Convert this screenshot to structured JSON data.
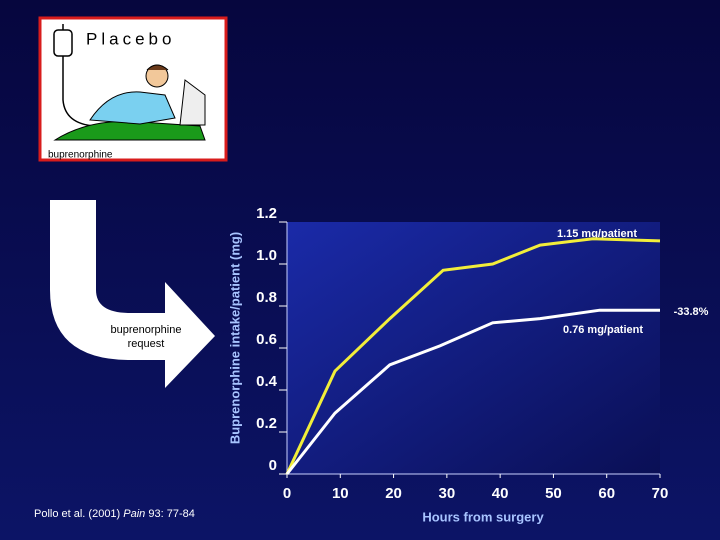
{
  "chart_data": {
    "type": "line",
    "y_label": "Buprenorphine intake/patient (mg)",
    "x_label": "Hours from surgery",
    "xlim": [
      0,
      70
    ],
    "xticks": [
      0,
      10,
      20,
      30,
      40,
      50,
      60,
      70
    ],
    "ylim": [
      0,
      1.2
    ],
    "yticks": [
      0,
      0.2,
      0.4,
      0.6,
      0.8,
      {
        "value": 1,
        "label": "1.0"
      },
      1.2
    ],
    "series": [
      {
        "color": "#f2ee3a",
        "x": [
          0,
          9,
          19.3,
          29.3,
          38.6,
          47.5,
          57.4,
          70
        ],
        "values": [
          0,
          0.49,
          0.74,
          0.97,
          1.0,
          1.09,
          1.12,
          1.11
        ]
      },
      {
        "color": "#ffffff",
        "x": [
          0,
          9,
          19.3,
          28.7,
          38.6,
          47.5,
          58.7,
          70
        ],
        "values": [
          0,
          0.29,
          0.52,
          0.61,
          0.72,
          0.74,
          0.78,
          0.78
        ]
      }
    ],
    "annotations": [
      "1.15 mg/patient",
      "0.76 mg/patient",
      "-33.8%"
    ]
  },
  "illustration": {
    "title": "Placebo",
    "label": "buprenorphine"
  },
  "arrow_text": [
    "buprenorphine",
    "request"
  ],
  "citation": [
    "Pollo et al. (2001) ",
    "Pain",
    " 93: 77-84"
  ]
}
